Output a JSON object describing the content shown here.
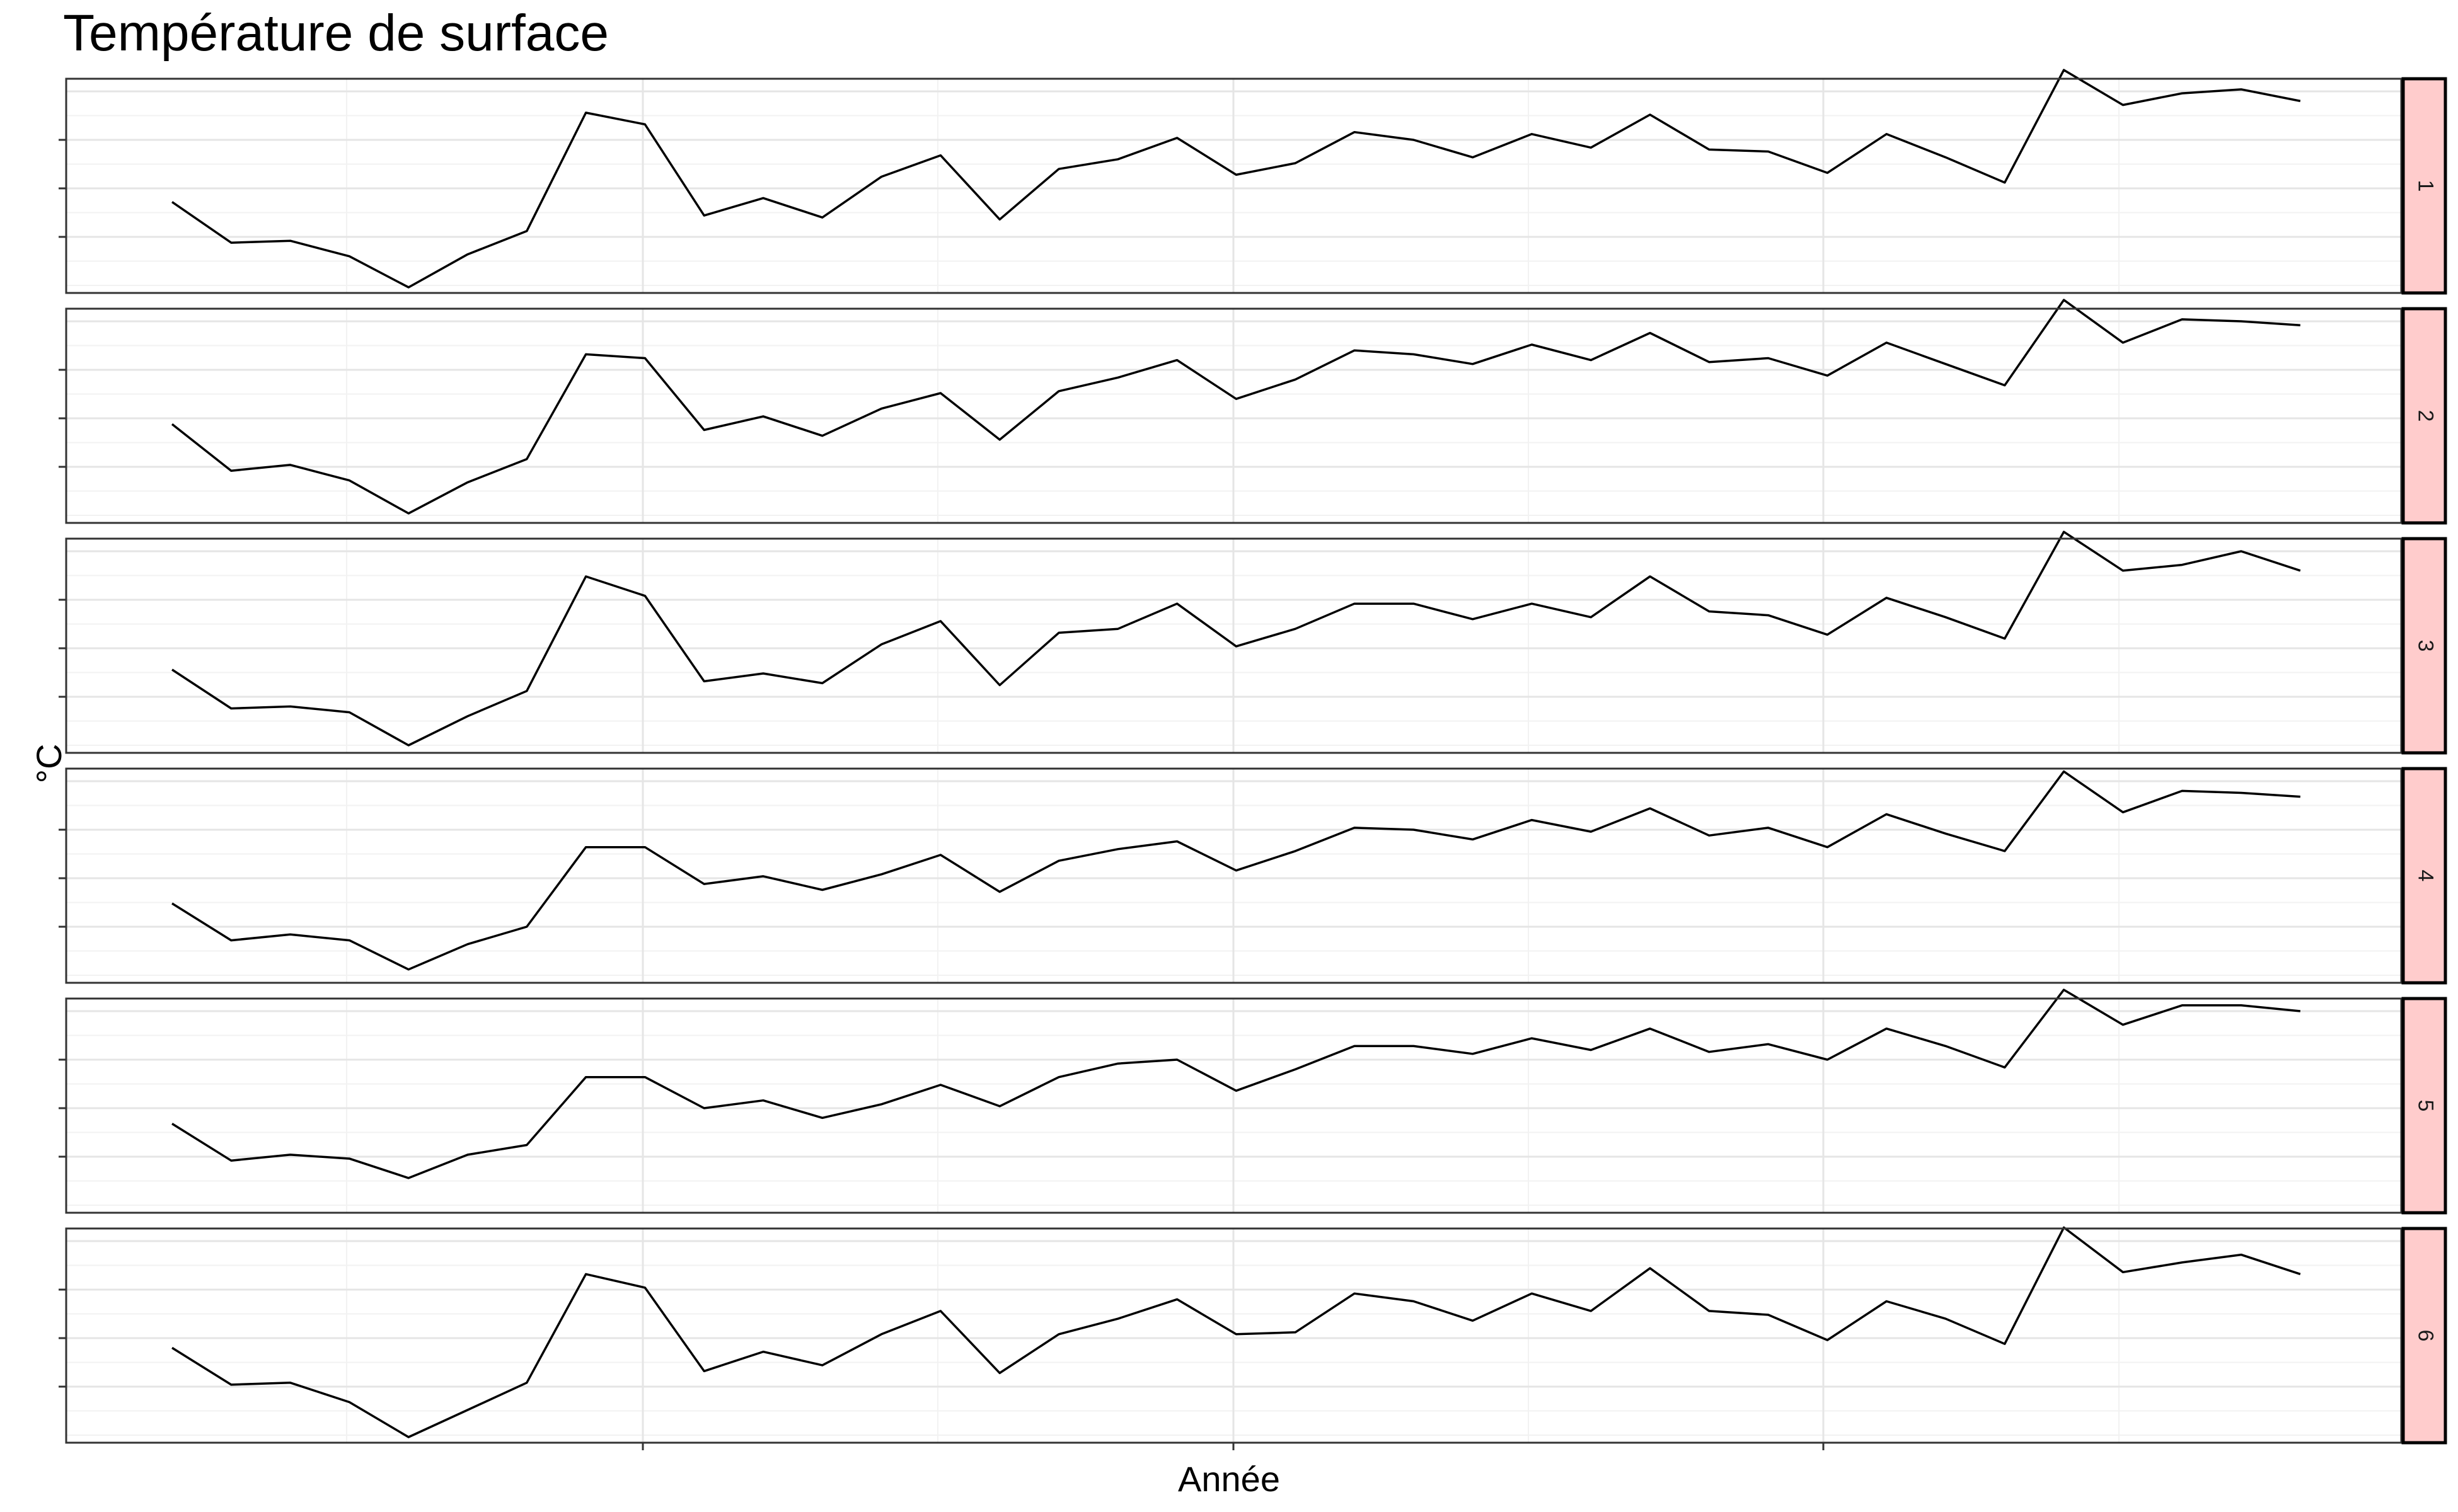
{
  "chart_data": {
    "type": "line",
    "title": "Température de surface",
    "xlabel": "Année",
    "ylabel": "°C",
    "x_tick_labels": [
      "",
      "",
      ""
    ],
    "y_tick_labels": [
      "",
      "",
      ""
    ],
    "grid": true,
    "ylim": [
      0,
      10
    ],
    "facet_strip_color": "#FFCCCC",
    "line_color": "#000000",
    "panels": [
      {
        "label": "1",
        "values": [
          4.3,
          2.2,
          2.3,
          1.5,
          -0.1,
          1.6,
          2.8,
          8.9,
          8.3,
          3.6,
          4.5,
          3.5,
          5.6,
          6.7,
          3.4,
          6.0,
          6.5,
          7.6,
          5.7,
          6.3,
          7.9,
          7.5,
          6.6,
          7.8,
          7.1,
          8.8,
          7.0,
          6.9,
          5.8,
          7.8,
          6.6,
          5.3,
          11.1,
          9.3,
          9.9,
          10.1,
          9.5
        ]
      },
      {
        "label": "2",
        "values": [
          4.7,
          2.3,
          2.6,
          1.8,
          0.1,
          1.7,
          2.9,
          8.3,
          8.1,
          4.4,
          5.1,
          4.1,
          5.5,
          6.3,
          3.9,
          6.4,
          7.1,
          8.0,
          6.0,
          7.0,
          8.5,
          8.3,
          7.8,
          8.8,
          8.0,
          9.4,
          7.9,
          8.1,
          7.2,
          8.9,
          7.8,
          6.7,
          11.1,
          8.9,
          10.1,
          10.0,
          9.8
        ]
      },
      {
        "label": "3",
        "values": [
          3.9,
          1.9,
          2.0,
          1.7,
          0.0,
          1.5,
          2.8,
          8.7,
          7.7,
          3.3,
          3.7,
          3.2,
          5.2,
          6.4,
          3.1,
          5.8,
          6.0,
          7.3,
          5.1,
          6.0,
          7.3,
          7.3,
          6.5,
          7.3,
          6.6,
          8.7,
          6.9,
          6.7,
          5.7,
          7.6,
          6.6,
          5.5,
          11.0,
          9.0,
          9.3,
          10.0,
          9.0
        ]
      },
      {
        "label": "4",
        "values": [
          3.7,
          1.8,
          2.1,
          1.8,
          0.3,
          1.6,
          2.5,
          6.6,
          6.6,
          4.7,
          5.1,
          4.4,
          5.2,
          6.2,
          4.3,
          5.9,
          6.5,
          6.9,
          5.4,
          6.4,
          7.6,
          7.5,
          7.0,
          8.0,
          7.4,
          8.6,
          7.2,
          7.6,
          6.6,
          8.3,
          7.3,
          6.4,
          10.5,
          8.4,
          9.5,
          9.4,
          9.2
        ]
      },
      {
        "label": "5",
        "values": [
          4.2,
          2.3,
          2.6,
          2.4,
          1.4,
          2.6,
          3.1,
          6.6,
          6.6,
          5.0,
          5.4,
          4.5,
          5.2,
          6.2,
          5.1,
          6.6,
          7.3,
          7.5,
          5.9,
          7.0,
          8.2,
          8.2,
          7.8,
          8.6,
          8.0,
          9.1,
          7.9,
          8.3,
          7.5,
          9.1,
          8.2,
          7.1,
          11.1,
          9.3,
          10.3,
          10.3,
          10.0
        ]
      },
      {
        "label": "6",
        "values": [
          4.5,
          2.6,
          2.7,
          1.7,
          -0.1,
          1.3,
          2.7,
          8.3,
          7.6,
          3.3,
          4.3,
          3.6,
          5.2,
          6.4,
          3.2,
          5.2,
          6.0,
          7.0,
          5.2,
          5.3,
          7.3,
          6.9,
          5.9,
          7.3,
          6.4,
          8.6,
          6.4,
          6.2,
          4.9,
          6.9,
          6.0,
          4.7,
          10.7,
          8.4,
          8.9,
          9.3,
          8.3
        ]
      }
    ]
  }
}
